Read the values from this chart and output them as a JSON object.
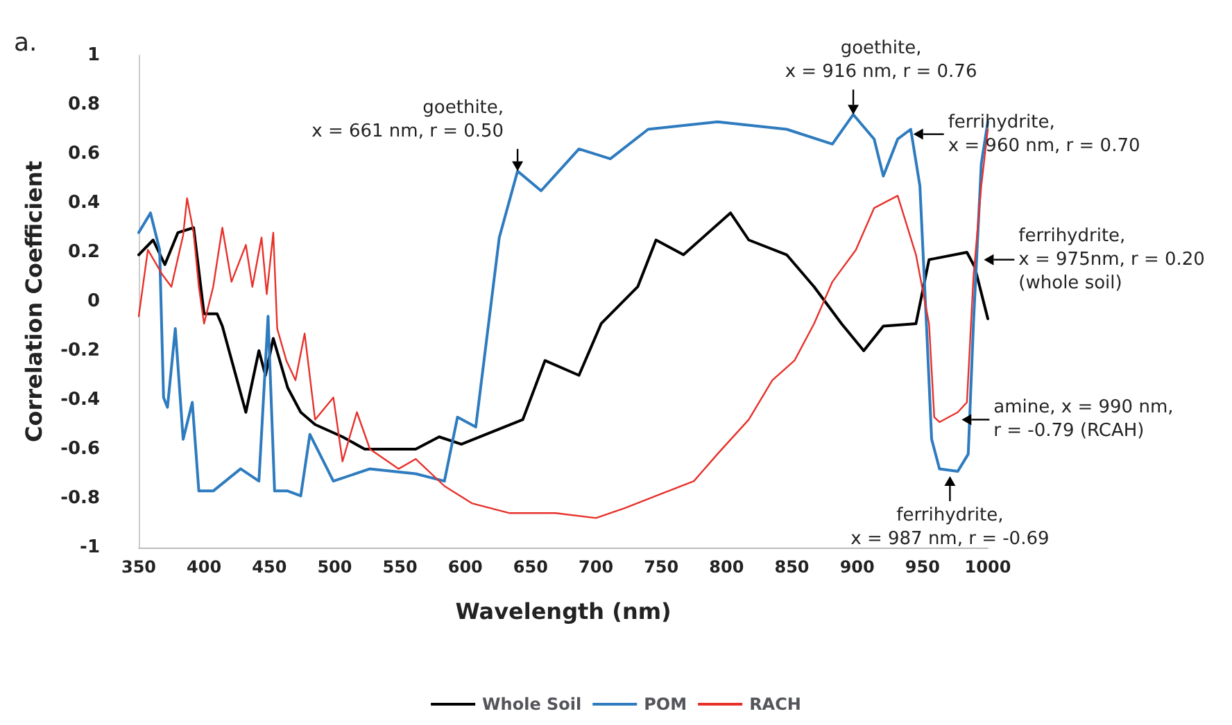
{
  "chart_data": {
    "type": "line",
    "xlabel": "Wavelength (nm)",
    "ylabel": "Correlation Coefficient",
    "xlim": [
      350,
      1000
    ],
    "xticks": [
      350,
      400,
      450,
      500,
      550,
      600,
      650,
      700,
      750,
      800,
      850,
      900,
      950,
      1000
    ],
    "ylim": [
      -1,
      1
    ],
    "yticks": [
      -1,
      -0.8,
      -0.6,
      -0.4,
      -0.2,
      0,
      0.2,
      0.4,
      0.6,
      0.8,
      1
    ],
    "grid": false,
    "legend": "bottom",
    "marker": "none",
    "line_style": "solid",
    "series": [
      {
        "name": "Whole Soil",
        "color": "#000000",
        "x": [
          350,
          361,
          370,
          380,
          392,
          400,
          410,
          414,
          432,
          442,
          447,
          453,
          464,
          474,
          485,
          506,
          523,
          562,
          580,
          597,
          644,
          661,
          687,
          704,
          732,
          746,
          767,
          803,
          817,
          846,
          867,
          888,
          905,
          920,
          945,
          955,
          984,
          990,
          1000
        ],
        "values": [
          0.19,
          0.25,
          0.15,
          0.28,
          0.3,
          -0.05,
          -0.05,
          -0.1,
          -0.45,
          -0.2,
          -0.3,
          -0.15,
          -0.35,
          -0.45,
          -0.5,
          -0.55,
          -0.6,
          -0.6,
          -0.55,
          -0.58,
          -0.48,
          -0.24,
          -0.3,
          -0.09,
          0.06,
          0.25,
          0.19,
          0.36,
          0.25,
          0.19,
          0.06,
          -0.09,
          -0.2,
          -0.1,
          -0.09,
          0.17,
          0.2,
          0.14,
          -0.07
        ]
      },
      {
        "name": "POM",
        "color": "#2e7bbf",
        "x": [
          350,
          359,
          366,
          369,
          372,
          378,
          384,
          391,
          396,
          407,
          428,
          442,
          449,
          454,
          464,
          474,
          481,
          499,
          527,
          562,
          584,
          594,
          608,
          626,
          640,
          658,
          687,
          711,
          740,
          793,
          846,
          881,
          897,
          913,
          920,
          931,
          941,
          948,
          953,
          957,
          963,
          977,
          985,
          989,
          995,
          1000
        ],
        "values": [
          0.28,
          0.36,
          0.21,
          -0.39,
          -0.43,
          -0.11,
          -0.56,
          -0.41,
          -0.77,
          -0.77,
          -0.68,
          -0.73,
          -0.06,
          -0.77,
          -0.77,
          -0.79,
          -0.54,
          -0.73,
          -0.68,
          -0.7,
          -0.73,
          -0.47,
          -0.51,
          0.26,
          0.53,
          0.45,
          0.62,
          0.58,
          0.7,
          0.73,
          0.7,
          0.64,
          0.76,
          0.66,
          0.51,
          0.66,
          0.7,
          0.47,
          -0.09,
          -0.56,
          -0.68,
          -0.69,
          -0.62,
          -0.09,
          0.56,
          0.73
        ]
      },
      {
        "name": "RACH",
        "color": "#e8302a",
        "x": [
          350,
          357,
          368,
          375,
          384,
          387,
          392,
          396,
          400,
          407,
          414,
          421,
          432,
          437,
          444,
          448,
          453,
          456,
          463,
          470,
          477,
          485,
          499,
          506,
          517,
          527,
          549,
          562,
          584,
          605,
          634,
          669,
          700,
          722,
          746,
          775,
          793,
          817,
          835,
          852,
          867,
          881,
          899,
          913,
          931,
          945,
          955,
          959,
          963,
          977,
          984,
          989,
          995,
          1000
        ],
        "values": [
          -0.06,
          0.21,
          0.11,
          0.06,
          0.27,
          0.42,
          0.28,
          0.06,
          -0.09,
          0.06,
          0.3,
          0.08,
          0.23,
          0.06,
          0.26,
          0.03,
          0.28,
          -0.11,
          -0.24,
          -0.32,
          -0.13,
          -0.48,
          -0.39,
          -0.65,
          -0.45,
          -0.6,
          -0.68,
          -0.64,
          -0.75,
          -0.82,
          -0.86,
          -0.86,
          -0.88,
          -0.84,
          -0.79,
          -0.73,
          -0.62,
          -0.48,
          -0.32,
          -0.24,
          -0.09,
          0.08,
          0.21,
          0.38,
          0.43,
          0.19,
          -0.09,
          -0.47,
          -0.49,
          -0.45,
          -0.41,
          0.1,
          0.47,
          0.7
        ]
      }
    ],
    "annotations": [
      "a.",
      {
        "text": "goethite,\nx = 661 nm, r = 0.50",
        "x": 640,
        "y": 0.53
      },
      {
        "text": "goethite,\nx = 916 nm, r = 0.76",
        "x": 897,
        "y": 0.76
      },
      {
        "text": "ferrihydrite,\nx = 960 nm, r = 0.70",
        "x": 943,
        "y": 0.68
      },
      {
        "text": "ferrihydrite,\nx = 975nm, r = 0.20\n(whole soil)",
        "x": 997,
        "y": 0.17
      },
      {
        "text": "amine, x = 990 nm,\nr = -0.79 (RCAH)",
        "x": 980,
        "y": -0.48
      },
      {
        "text": "ferrihydrite,\nx = 987 nm, r = -0.69",
        "x": 971,
        "y": -0.71
      }
    ]
  }
}
